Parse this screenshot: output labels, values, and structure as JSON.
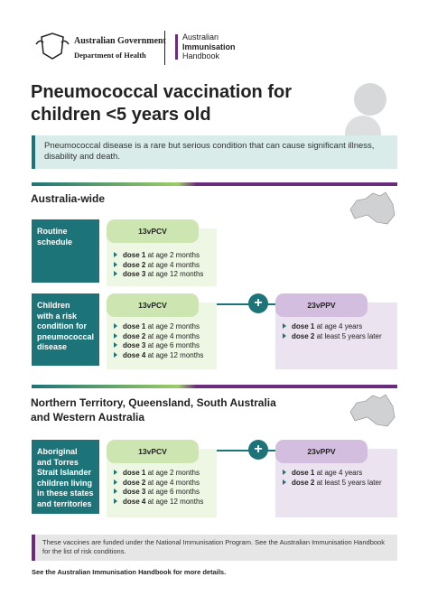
{
  "header": {
    "gov_name": "Australian Government",
    "department": "Department of Health",
    "handbook": [
      "Australian",
      "Immunisation",
      "Handbook"
    ]
  },
  "title": [
    "Pneumococcal vaccination for",
    "children <5 years old"
  ],
  "intro": "Pneumococcal disease is a rare but serious condition that can cause significant illness, disability and death.",
  "sections": [
    {
      "heading": [
        "Australia-wide"
      ],
      "rows": [
        {
          "label": [
            "Routine",
            "schedule"
          ],
          "vaccines": [
            {
              "name": "13vPCV",
              "doses": [
                [
                  "dose 1",
                  " at age 2 months"
                ],
                [
                  "dose 2",
                  " at age 4 months"
                ],
                [
                  "dose 3",
                  " at age 12 months"
                ]
              ]
            }
          ]
        },
        {
          "label": [
            "Children",
            "with a risk",
            "condition for",
            "pneumococcal",
            "disease"
          ],
          "vaccines": [
            {
              "name": "13vPCV",
              "doses": [
                [
                  "dose 1",
                  " at age 2 months"
                ],
                [
                  "dose 2",
                  " at age 4 months"
                ],
                [
                  "dose 3",
                  " at age 6 months"
                ],
                [
                  "dose 4",
                  " at age 12 months"
                ]
              ]
            },
            {
              "name": "23vPPV",
              "doses": [
                [
                  "dose 1",
                  " at age 4 years"
                ],
                [
                  "dose 2",
                  " at least 5 years later"
                ]
              ]
            }
          ]
        }
      ]
    },
    {
      "heading": [
        "Northern Territory, Queensland, South Australia",
        "and Western Australia"
      ],
      "rows": [
        {
          "label": [
            "Aboriginal",
            "and Torres",
            "Strait Islander",
            "children living",
            "in these states",
            "and territories"
          ],
          "vaccines": [
            {
              "name": "13vPCV",
              "doses": [
                [
                  "dose 1",
                  " at age 2 months"
                ],
                [
                  "dose 2",
                  " at age 4 months"
                ],
                [
                  "dose 3",
                  " at age 6 months"
                ],
                [
                  "dose 4",
                  " at age 12 months"
                ]
              ]
            },
            {
              "name": "23vPPV",
              "doses": [
                [
                  "dose 1",
                  " at age 4 years"
                ],
                [
                  "dose 2",
                  " at least 5 years later"
                ]
              ]
            }
          ]
        }
      ]
    }
  ],
  "footnote": "These vaccines are funded under the National Immunisation Program. See the Australian Immunisation Handbook for the list of risk conditions.",
  "footer": "See the Australian Immunisation Handbook for more details."
}
